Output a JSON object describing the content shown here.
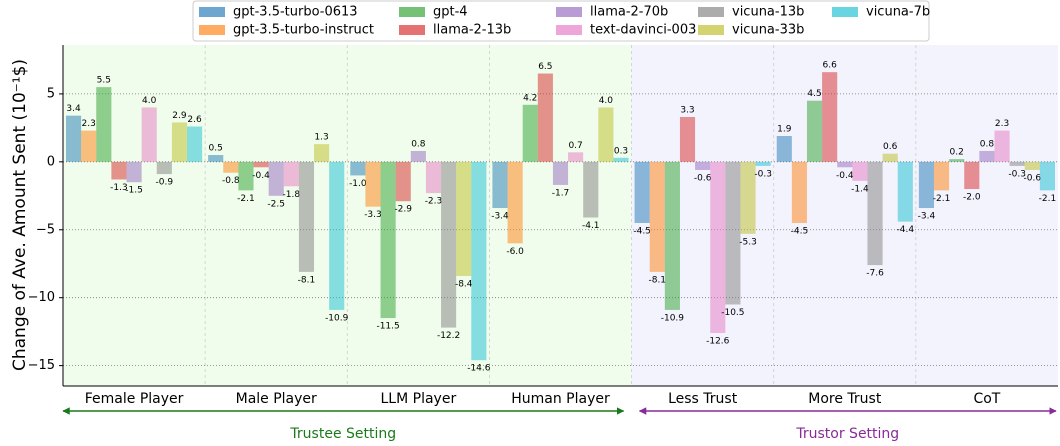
{
  "chart_data": {
    "type": "bar",
    "ylabel": "Change of Ave. Amount Sent (10⁻¹$)",
    "categories": [
      "Female Player",
      "Male Player",
      "LLM Player",
      "Human Player",
      "Less Trust",
      "More Trust",
      "CoT"
    ],
    "annotations": [
      "Trustee Setting",
      "Trustor Setting"
    ],
    "series": [
      {
        "name": "gpt-3.5-turbo-0613",
        "color": "#1f77b4",
        "values": [
          3.4,
          0.5,
          -1.0,
          -3.4,
          -4.5,
          1.9,
          -3.4
        ],
        "value_labels": [
          "3.4",
          "0.5",
          "-1.0",
          "-3.4",
          "-4.5",
          "1.9",
          "-3.4"
        ]
      },
      {
        "name": "gpt-3.5-turbo-instruct",
        "color": "#ff7f0e",
        "values": [
          2.3,
          -0.8,
          -3.3,
          -6.0,
          -8.1,
          -4.5,
          -2.1
        ],
        "value_labels": [
          "2.3",
          "-0.8",
          "-3.3",
          "-6.0",
          "-8.1",
          "-4.5",
          "-2.1"
        ]
      },
      {
        "name": "gpt-4",
        "color": "#2ca02c",
        "values": [
          5.5,
          -2.1,
          -11.5,
          4.2,
          -10.9,
          4.5,
          0.2
        ],
        "value_labels": [
          "5.5",
          "-2.1",
          "-11.5",
          "4.2",
          "-10.9",
          "4.5",
          "0.2"
        ]
      },
      {
        "name": "llama-2-13b",
        "color": "#d62728",
        "values": [
          -1.3,
          -0.4,
          -2.9,
          6.5,
          3.3,
          6.6,
          -2.0
        ],
        "value_labels": [
          "-1.3",
          "-0.4",
          "-2.9",
          "6.5",
          "3.3",
          "6.6",
          "-2.0"
        ]
      },
      {
        "name": "llama-2-70b",
        "color": "#9467bd",
        "values": [
          -1.5,
          -2.5,
          0.8,
          -1.7,
          -0.6,
          -0.4,
          0.8
        ],
        "value_labels": [
          "-1.5",
          "-2.5",
          "0.8",
          "-1.7",
          "-0.6",
          "-0.4",
          "0.8"
        ]
      },
      {
        "name": "text-davinci-003",
        "color": "#e377c2",
        "values": [
          4.0,
          -1.8,
          -2.3,
          0.7,
          -12.6,
          -1.4,
          2.3
        ],
        "value_labels": [
          "4.0",
          "-1.8",
          "-2.3",
          "0.7",
          "-12.6",
          "-1.4",
          "2.3"
        ]
      },
      {
        "name": "vicuna-13b",
        "color": "#7f7f7f",
        "values": [
          -0.9,
          -8.1,
          -12.2,
          -4.1,
          -10.5,
          -7.6,
          -0.3
        ],
        "value_labels": [
          "-0.9",
          "-8.1",
          "-12.2",
          "-4.1",
          "-10.5",
          "-7.6",
          "-0.3"
        ]
      },
      {
        "name": "vicuna-33b",
        "color": "#bcbd22",
        "values": [
          2.9,
          1.3,
          -8.4,
          4.0,
          -5.3,
          0.6,
          -0.6
        ],
        "value_labels": [
          "2.9",
          "1.3",
          "-8.4",
          "4.0",
          "-5.3",
          "0.6",
          "-0.6"
        ]
      },
      {
        "name": "vicuna-7b",
        "color": "#17becf",
        "values": [
          2.6,
          -10.9,
          -14.6,
          0.3,
          -0.3,
          -4.4,
          -2.1
        ],
        "value_labels": [
          "2.6",
          "-10.9",
          "-14.6",
          "0.3",
          "-0.3",
          "-4.4",
          "-2.1"
        ]
      }
    ],
    "ylim": [
      -16.5,
      8.6
    ],
    "yticks": [
      {
        "value": -15,
        "label": "−15"
      },
      {
        "value": -10,
        "label": "−10"
      },
      {
        "value": -5,
        "label": "−5"
      },
      0,
      5
    ],
    "grid": true,
    "legend": "top"
  }
}
